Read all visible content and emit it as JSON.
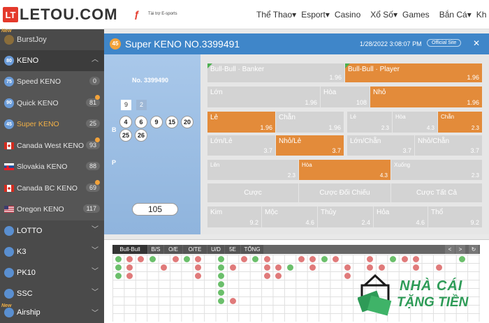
{
  "header": {
    "logo_text": "LETOU.COM",
    "logo_badge": "LT",
    "sponsor_text": "Tài trợ E-sports",
    "nav": [
      "Thể Thao",
      "Esport",
      "Casino",
      "Xổ Số",
      "Games",
      "Bắn Cá",
      "Kh"
    ]
  },
  "sidebar": {
    "items": [
      {
        "label": "BurstJoy",
        "type": "top",
        "badge": "New"
      },
      {
        "label": "KENO",
        "type": "section",
        "icon": "80"
      },
      {
        "label": "Speed KENO",
        "type": "sub",
        "count": "0",
        "icon": "75"
      },
      {
        "label": "Quick KENO",
        "type": "sub",
        "count": "81",
        "icon": "90"
      },
      {
        "label": "Super KENO",
        "type": "sub",
        "count": "25",
        "icon": "45",
        "active": true
      },
      {
        "label": "Canada West KENO",
        "type": "sub",
        "count": "93"
      },
      {
        "label": "Slovakia KENO",
        "type": "sub",
        "count": "88"
      },
      {
        "label": "Canada BC KENO",
        "type": "sub",
        "count": "69"
      },
      {
        "label": "Oregon KENO",
        "type": "sub",
        "count": "117"
      },
      {
        "label": "LOTTO",
        "type": "section"
      },
      {
        "label": "K3",
        "type": "section"
      },
      {
        "label": "PK10",
        "type": "section"
      },
      {
        "label": "SSC",
        "type": "section"
      },
      {
        "label": "Airship",
        "type": "section",
        "badge": "New"
      }
    ]
  },
  "game": {
    "badge": "45",
    "title": "Super KENO NO.3399491",
    "date": "1/28/2022 3:08:07 PM",
    "official_site": "Official Site",
    "close": "✕"
  },
  "draw": {
    "number": "No. 3399490",
    "top_small": [
      "9",
      "2"
    ],
    "b_label": "B",
    "p_label": "P",
    "balls": [
      "4",
      "6",
      "9",
      "15",
      "20",
      "25",
      "26"
    ],
    "total": "105"
  },
  "bets": {
    "row1": [
      {
        "label": "Bull-Bull · Banker",
        "odds": "1.96"
      },
      {
        "label": "Bull-Bull · Player",
        "odds": "1.96"
      }
    ],
    "row2": [
      {
        "label": "Lớn",
        "odds": "1.96"
      },
      {
        "label": "Hòa",
        "odds": "108"
      },
      {
        "label": "Nhỏ",
        "odds": "1.96"
      }
    ],
    "row3": [
      {
        "label": "Lẻ",
        "odds": "1.96"
      },
      {
        "label": "Chẵn",
        "odds": "1.96"
      },
      {
        "label": "Lẻ",
        "odds": "2.3"
      },
      {
        "label": "Hòa",
        "odds": "4.3"
      },
      {
        "label": "Chẵn",
        "odds": "2.3"
      }
    ],
    "row4": [
      {
        "label": "Lớn/Lẻ",
        "odds": "3.7"
      },
      {
        "label": "Nhỏ/Lẻ",
        "odds": "3.7"
      },
      {
        "label": "Lớn/Chẵn",
        "odds": "3.7"
      },
      {
        "label": "Nhỏ/Chẵn",
        "odds": "3.7"
      }
    ],
    "row5": [
      {
        "label": "Lên",
        "odds": "2.3"
      },
      {
        "label": "Hòa",
        "odds": "4.3"
      },
      {
        "label": "Xuống",
        "odds": "2.3"
      }
    ],
    "buttons": [
      "Cược",
      "Cược Đối Chiếu",
      "Cược Tất Cả"
    ],
    "row7": [
      {
        "label": "Kim",
        "odds": "9.2"
      },
      {
        "label": "Mộc",
        "odds": "4.6"
      },
      {
        "label": "Thủy",
        "odds": "2.4"
      },
      {
        "label": "Hỏa",
        "odds": "4.6"
      },
      {
        "label": "Thổ",
        "odds": "9.2"
      }
    ]
  },
  "road": {
    "tabs": [
      "Bull-Bull",
      "B/S",
      "O/E",
      "O/TE",
      "U/D",
      "5E",
      "TỔNG"
    ],
    "nav": [
      "<",
      ">",
      "↻"
    ]
  },
  "watermark": {
    "line1": "NHÀ CÁI",
    "line2": "TẶNG TIỀN"
  },
  "colors": {
    "accent": "#3f86c9",
    "selected": "#e38b3a",
    "sidebar": "#4a4a4a",
    "active_item": "#f2b046"
  }
}
